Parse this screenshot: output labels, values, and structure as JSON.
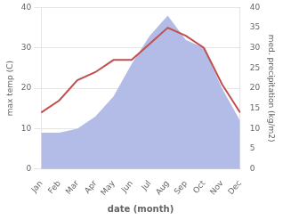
{
  "chart_data": {
    "type": "line",
    "categories": [
      "Jan",
      "Feb",
      "Mar",
      "Apr",
      "May",
      "Jun",
      "Jul",
      "Aug",
      "Sep",
      "Oct",
      "Nov",
      "Dec"
    ],
    "xlabel": "date (month)",
    "ylabel": "max temp (C)",
    "y2label": "med. precipitation (kg/m2)",
    "series": [
      {
        "type": "area",
        "color": "#b3bce6",
        "axis": "y2",
        "values": [
          9,
          9,
          10,
          13,
          18,
          26,
          33,
          38,
          32,
          30,
          20,
          12
        ]
      },
      {
        "type": "line",
        "color": "#c0504d",
        "values": [
          14,
          17,
          22,
          24,
          27,
          27,
          31,
          35,
          33,
          30,
          21,
          14
        ]
      }
    ],
    "ylim": [
      0,
      40
    ],
    "yticks": [
      0,
      10,
      20,
      30,
      40
    ],
    "y2lim": [
      0,
      40
    ],
    "y2ticks": [
      0,
      5,
      10,
      15,
      20,
      25,
      30,
      35,
      40
    ],
    "grid": true
  }
}
